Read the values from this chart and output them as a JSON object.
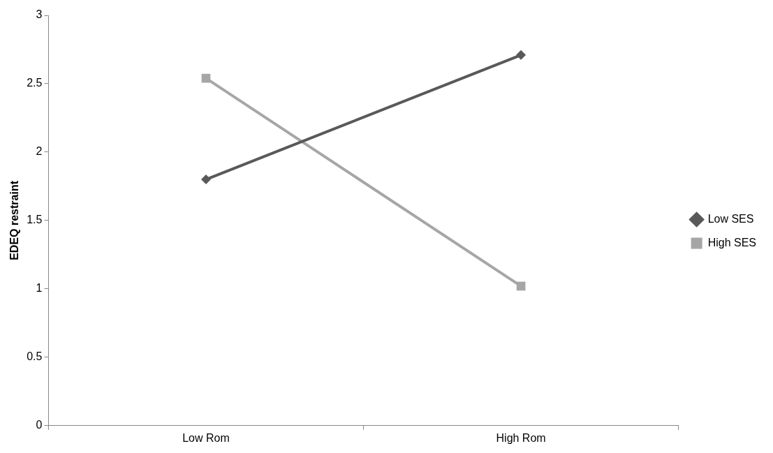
{
  "chart_data": {
    "type": "line",
    "ylabel": "EDEQ restraint",
    "categories": [
      "Low Rom",
      "High Rom"
    ],
    "series": [
      {
        "name": "Low SES",
        "color": "#595959",
        "values": [
          1.8,
          2.71
        ],
        "marker": "diamond"
      },
      {
        "name": "High SES",
        "color": "#a6a6a6",
        "values": [
          2.54,
          1.02
        ],
        "marker": "square"
      }
    ],
    "ylim": [
      0,
      3
    ],
    "yticks": [
      0,
      0.5,
      1,
      1.5,
      2,
      2.5,
      3
    ],
    "grid": false,
    "legend": "right"
  }
}
